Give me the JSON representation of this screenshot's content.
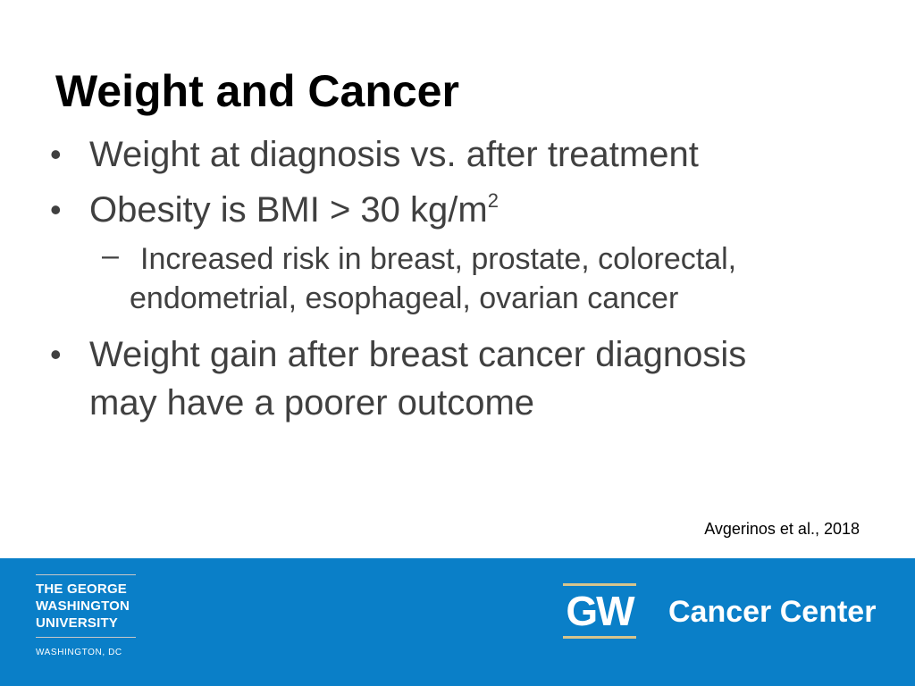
{
  "slide": {
    "title": "Weight and Cancer",
    "bullets": [
      {
        "text": "Weight at diagnosis vs. after treatment"
      },
      {
        "text": "Obesity is BMI > 30 kg/m",
        "superscript": "2"
      }
    ],
    "sub_bullet": {
      "dash": "–",
      "line1": "Increased risk in breast, prostate, colorectal,",
      "line2": "endometrial, esophageal, ovarian cancer"
    },
    "last_bullet": {
      "line1": "Weight gain after breast cancer diagnosis",
      "line2": "may have a poorer outcome"
    },
    "bullet_glyph": "•",
    "citation": "Avgerinos et al., 2018"
  },
  "footer": {
    "background_color": "#0a7fc8",
    "university": {
      "line1": "THE GEORGE",
      "line2": "WASHINGTON",
      "line3": "UNIVERSITY",
      "city": "WASHINGTON, DC"
    },
    "gw_logo": "GW",
    "center_name": "Cancer Center"
  }
}
